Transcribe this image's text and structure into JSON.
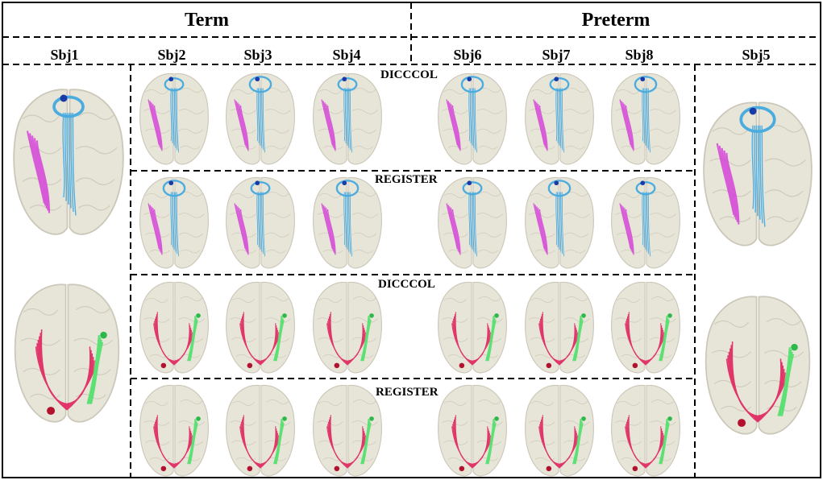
{
  "groups": {
    "term": "Term",
    "preterm": "Preterm"
  },
  "subjects": {
    "sbj1": "Sbj1",
    "sbj2": "Sbj2",
    "sbj3": "Sbj3",
    "sbj4": "Sbj4",
    "sbj6": "Sbj6",
    "sbj7": "Sbj7",
    "sbj8": "Sbj8",
    "sbj5": "Sbj5"
  },
  "row_labels": {
    "r1": "DICCCOL",
    "r2": "REGISTER",
    "r3": "DICCCOL",
    "r4": "REGISTER"
  },
  "colors": {
    "brain_fill": "#e6e3d6",
    "brain_stroke": "#c9c5b6",
    "fiber_blue": "#3aa6e0",
    "fiber_magenta": "#d64ad8",
    "fiber_red": "#e0245e",
    "fiber_green": "#4fe06a"
  }
}
